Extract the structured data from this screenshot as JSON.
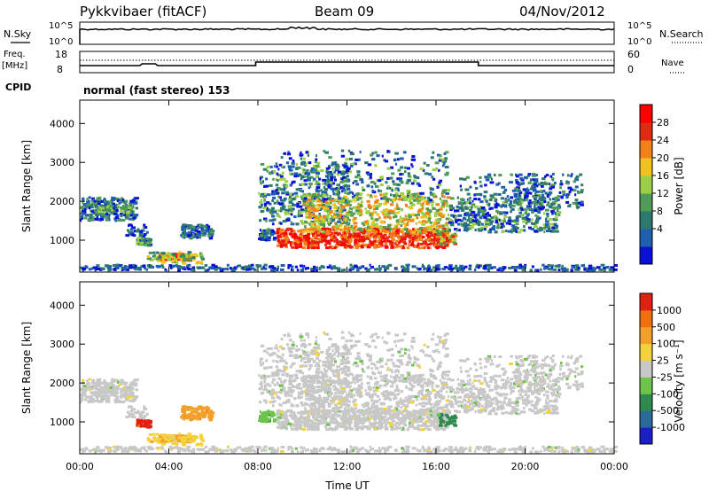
{
  "header": {
    "station": "Pykkvibaer (fitACF)",
    "beam": "Beam 09",
    "date": "04/Nov/2012"
  },
  "strip_nsky": {
    "left_label": "N.Sky",
    "left_ticks": [
      "10^5",
      "10^0"
    ],
    "right_ticks": [
      "10^5",
      "10^0"
    ],
    "right_label": "N.Search"
  },
  "strip_freq": {
    "left_label_1": "Freq.",
    "left_label_2": "[MHz]",
    "left_ticks": [
      "18",
      "8"
    ],
    "right_ticks": [
      "60",
      "0"
    ],
    "right_label": "Nave"
  },
  "cpid": {
    "label": "CPID",
    "value": "normal (fast stereo) 153"
  },
  "chart_data": [
    {
      "type": "heatmap",
      "ylabel": "Slant Range [km]",
      "ylim": [
        180,
        4600
      ],
      "ytick_values": [
        1000,
        2000,
        3000,
        4000
      ],
      "ytick_labels": [
        "1000",
        "2000",
        "3000",
        "4000"
      ],
      "xlim_hours": [
        0,
        24
      ],
      "colorbar": {
        "label": "Power [dB]",
        "tick_labels": [
          "28",
          "24",
          "20",
          "16",
          "12",
          "8",
          "4"
        ],
        "colors": [
          "#0b10d8",
          "#1e5fb0",
          "#2c7a6e",
          "#4f9b57",
          "#9bcf45",
          "#f2c21e",
          "#f08218",
          "#e02a12",
          "#ff0000"
        ]
      }
    },
    {
      "type": "heatmap",
      "ylabel": "Slant Range [km]",
      "ylim": [
        180,
        4600
      ],
      "ytick_values": [
        1000,
        2000,
        3000,
        4000
      ],
      "ytick_labels": [
        "1000",
        "2000",
        "3000",
        "4000"
      ],
      "xlim_hours": [
        0,
        24
      ],
      "colorbar": {
        "label": "Velocity [m s⁻¹]",
        "tick_labels": [
          "1000",
          "500",
          "100",
          "25",
          "-25",
          "-100",
          "-500",
          "-1000"
        ],
        "colors": [
          "#1a1fc8",
          "#2a6a9a",
          "#2e8a4e",
          "#6cc44a",
          "#c8c8c8",
          "#f4d23c",
          "#f2a02a",
          "#f07010",
          "#e02010"
        ]
      }
    }
  ],
  "xaxis": {
    "tick_labels": [
      "00:00",
      "04:00",
      "08:00",
      "12:00",
      "16:00",
      "20:00",
      "00:00"
    ],
    "tick_hours": [
      0,
      4,
      8,
      12,
      16,
      20,
      24
    ],
    "label": "Time UT"
  }
}
